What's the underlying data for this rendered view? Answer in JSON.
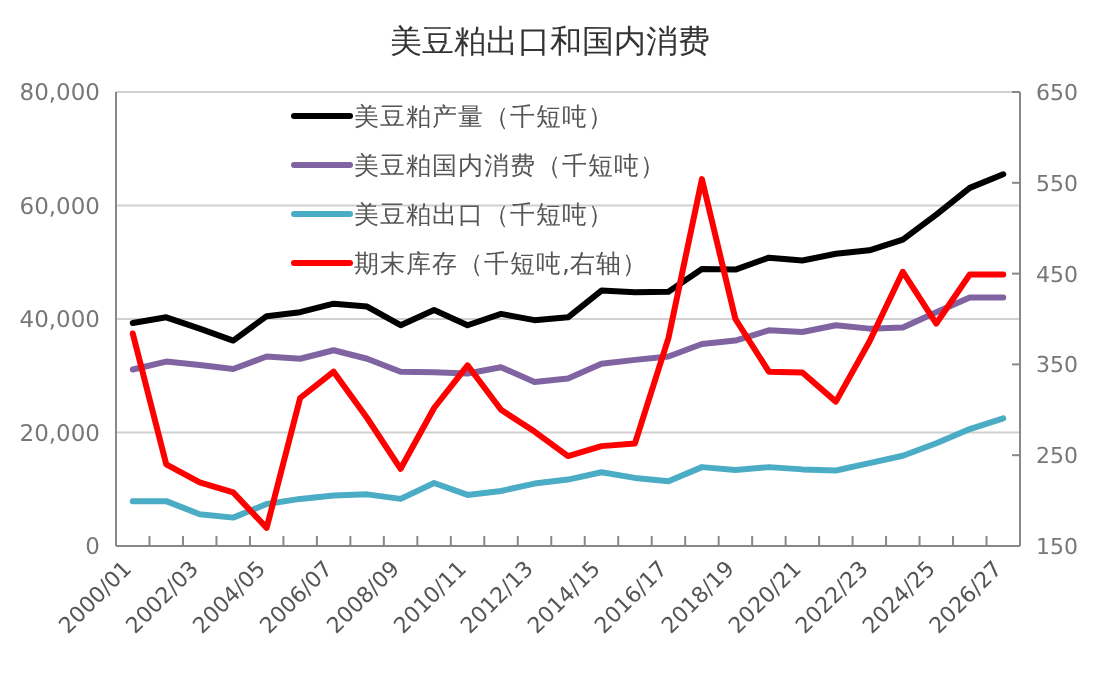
{
  "chart_data": {
    "type": "line",
    "title": "美豆粕出口和国内消费",
    "categories": [
      "2000/01",
      null,
      "2002/03",
      null,
      "2004/05",
      null,
      "2006/07",
      null,
      "2008/09",
      null,
      "2010/11",
      null,
      "2012/13",
      null,
      "2014/15",
      null,
      "2016/17",
      null,
      "2018/19",
      null,
      "2020/21",
      null,
      "2022/23",
      null,
      "2024/25",
      null,
      "2026/27"
    ],
    "series": [
      {
        "name": "美豆粕产量（千短吨）",
        "color": "#000000",
        "values": [
          39300,
          40300,
          38300,
          36200,
          40500,
          41200,
          42700,
          42200,
          38900,
          41600,
          38900,
          40900,
          39800,
          40300,
          45000,
          44700,
          44800,
          48800,
          48700,
          50800,
          50300,
          51500,
          52100,
          54000,
          58400,
          63100,
          65500
        ]
      },
      {
        "name": "美豆粕国内消费（千短吨）",
        "color": "#8064a2",
        "values": [
          31100,
          32500,
          31900,
          31200,
          33400,
          33000,
          34500,
          33000,
          30700,
          30600,
          30400,
          31500,
          28900,
          29500,
          32100,
          32800,
          33400,
          35600,
          36200,
          38000,
          37700,
          38900,
          38300,
          38500,
          41200,
          43800,
          43800
        ]
      },
      {
        "name": "美豆粕出口（千短吨）",
        "color": "#4bacc6",
        "values": [
          7900,
          7900,
          5600,
          5000,
          7400,
          8300,
          8900,
          9100,
          8300,
          11100,
          9000,
          9700,
          11000,
          11700,
          13000,
          12000,
          11400,
          13900,
          13400,
          13900,
          13500,
          13300,
          14600,
          15900,
          18100,
          20600,
          22500
        ]
      },
      {
        "name": "期末库存（千短吨,右轴）",
        "color": "#ff0000",
        "axis": "y2",
        "values": [
          384,
          240,
          220,
          209,
          170,
          313,
          342,
          291,
          235,
          302,
          349,
          300,
          276,
          249,
          260,
          263,
          379,
          554,
          400,
          342,
          341,
          309,
          375,
          452,
          395,
          449,
          449
        ]
      }
    ],
    "ylim": [
      0,
      80000
    ],
    "yticks": [
      0,
      {
        "value": 20000,
        "label": "20,000"
      },
      {
        "value": 40000,
        "label": "40,000"
      },
      {
        "value": 60000,
        "label": "60,000"
      },
      {
        "value": 80000,
        "label": "80,000"
      }
    ],
    "y2lim": [
      150,
      650
    ],
    "y2ticks": [
      150,
      250,
      350,
      450,
      550,
      650
    ],
    "grid": "y",
    "legend": "top left"
  }
}
